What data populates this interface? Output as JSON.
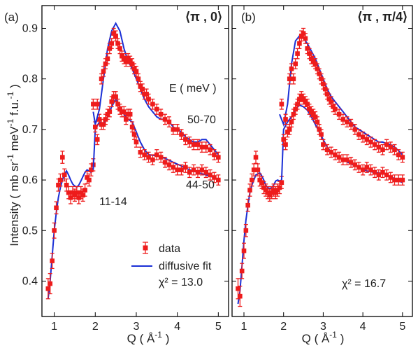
{
  "colors": {
    "data": "#ee1c1c",
    "fit": "#1a2fd6",
    "axis": "#000000"
  },
  "ylabel_parts": [
    "Intensity ( mb sr",
    "-1",
    " meV",
    "-1",
    " f.u.",
    "-1",
    " )"
  ],
  "xlabel_parts": [
    "Q ( Å",
    "-1",
    " )"
  ],
  "legend": {
    "data_label": "data",
    "fit_label": "diffusive fit"
  },
  "annotations": {
    "energy_header": "E ( meV )",
    "range_high": "50-70",
    "range_mid": "44-50",
    "range_low": "11-14"
  },
  "chart_data": [
    {
      "type": "scatter",
      "panel_label": "(a)",
      "q_label": "⟨π , 0⟩",
      "chi2_label": "χ² = 13.0",
      "xlim": [
        0.7,
        5.25
      ],
      "ylim": [
        0.33,
        0.945
      ],
      "xticks": [
        1,
        2,
        3,
        4,
        5
      ],
      "yticks": [
        0.4,
        0.5,
        0.6,
        0.7,
        0.8,
        0.9
      ],
      "series": [
        {
          "name": "11-14",
          "x": [
            0.85,
            0.9,
            0.95,
            1.0,
            1.05,
            1.1,
            1.15,
            1.2,
            1.25,
            1.3,
            1.35,
            1.4,
            1.45,
            1.5,
            1.55,
            1.6,
            1.65,
            1.7,
            1.75,
            1.8,
            1.85,
            1.9,
            1.95
          ],
          "y": [
            0.385,
            0.395,
            0.44,
            0.5,
            0.545,
            0.59,
            0.6,
            0.645,
            0.61,
            0.59,
            0.575,
            0.565,
            0.575,
            0.57,
            0.575,
            0.565,
            0.575,
            0.57,
            0.58,
            0.605,
            0.6,
            0.62,
            0.63
          ],
          "err": [
            0.02,
            0.02,
            0.015,
            0.015,
            0.012,
            0.012,
            0.012,
            0.012,
            0.012,
            0.012,
            0.012,
            0.012,
            0.012,
            0.012,
            0.012,
            0.012,
            0.012,
            0.012,
            0.012,
            0.012,
            0.012,
            0.012,
            0.012
          ],
          "fit_x": [
            0.85,
            0.9,
            0.95,
            1.0,
            1.05,
            1.1,
            1.15,
            1.2,
            1.25,
            1.3,
            1.35,
            1.4,
            1.45,
            1.5,
            1.55,
            1.6,
            1.65,
            1.7,
            1.75,
            1.8,
            1.85,
            1.9,
            1.95
          ],
          "fit_y": [
            0.365,
            0.4,
            0.45,
            0.5,
            0.535,
            0.565,
            0.585,
            0.6,
            0.612,
            0.618,
            0.61,
            0.6,
            0.592,
            0.588,
            0.586,
            0.59,
            0.598,
            0.607,
            0.615,
            0.62,
            0.618,
            0.615,
            0.62
          ]
        },
        {
          "name": "44-50",
          "x": [
            2.0,
            2.05,
            2.1,
            2.15,
            2.2,
            2.25,
            2.3,
            2.35,
            2.4,
            2.45,
            2.5,
            2.55,
            2.6,
            2.65,
            2.7,
            2.75,
            2.8,
            2.85,
            2.9,
            2.95,
            3.0,
            3.1,
            3.2,
            3.3,
            3.4,
            3.5,
            3.6,
            3.7,
            3.8,
            3.9,
            4.0,
            4.1,
            4.2,
            4.3,
            4.4,
            4.5,
            4.6,
            4.7,
            4.8,
            4.9,
            5.0
          ],
          "y": [
            0.705,
            0.68,
            0.72,
            0.71,
            0.71,
            0.72,
            0.73,
            0.735,
            0.755,
            0.765,
            0.765,
            0.75,
            0.74,
            0.735,
            0.735,
            0.72,
            0.73,
            0.73,
            0.705,
            0.69,
            0.675,
            0.655,
            0.65,
            0.645,
            0.64,
            0.65,
            0.645,
            0.635,
            0.63,
            0.625,
            0.62,
            0.62,
            0.625,
            0.615,
            0.62,
            0.615,
            0.62,
            0.615,
            0.61,
            0.605,
            0.6
          ],
          "err": [
            0.01,
            0.01,
            0.01,
            0.01,
            0.01,
            0.01,
            0.01,
            0.01,
            0.01,
            0.01,
            0.01,
            0.01,
            0.01,
            0.01,
            0.01,
            0.01,
            0.01,
            0.01,
            0.01,
            0.01,
            0.01,
            0.01,
            0.01,
            0.01,
            0.01,
            0.01,
            0.01,
            0.01,
            0.01,
            0.01,
            0.01,
            0.01,
            0.01,
            0.01,
            0.01,
            0.01,
            0.01,
            0.01,
            0.01,
            0.01,
            0.01
          ],
          "fit_x": [
            1.95,
            2.0,
            2.1,
            2.2,
            2.3,
            2.4,
            2.5,
            2.6,
            2.7,
            2.8,
            2.9,
            3.0,
            3.1,
            3.2,
            3.3,
            3.5,
            3.7,
            3.9,
            4.1,
            4.3,
            4.5,
            4.7,
            4.9,
            5.0
          ],
          "fit_y": [
            0.62,
            0.7,
            0.715,
            0.71,
            0.725,
            0.745,
            0.76,
            0.745,
            0.73,
            0.72,
            0.715,
            0.695,
            0.675,
            0.66,
            0.65,
            0.648,
            0.643,
            0.635,
            0.628,
            0.62,
            0.615,
            0.61,
            0.605,
            0.6
          ]
        },
        {
          "name": "50-70",
          "x": [
            1.95,
            2.05,
            2.15,
            2.2,
            2.25,
            2.3,
            2.35,
            2.4,
            2.45,
            2.5,
            2.55,
            2.6,
            2.65,
            2.7,
            2.75,
            2.8,
            2.85,
            2.9,
            2.95,
            3.0,
            3.05,
            3.1,
            3.15,
            3.2,
            3.25,
            3.3,
            3.4,
            3.5,
            3.6,
            3.7,
            3.8,
            3.9,
            4.0,
            4.1,
            4.2,
            4.3,
            4.4,
            4.5,
            4.6,
            4.7,
            4.8,
            4.9,
            5.0
          ],
          "y": [
            0.75,
            0.75,
            0.8,
            0.815,
            0.83,
            0.84,
            0.86,
            0.87,
            0.89,
            0.885,
            0.87,
            0.86,
            0.845,
            0.84,
            0.835,
            0.84,
            0.835,
            0.83,
            0.82,
            0.815,
            0.8,
            0.785,
            0.78,
            0.77,
            0.77,
            0.76,
            0.75,
            0.74,
            0.73,
            0.72,
            0.715,
            0.7,
            0.7,
            0.69,
            0.68,
            0.675,
            0.67,
            0.67,
            0.665,
            0.665,
            0.66,
            0.65,
            0.645
          ],
          "err": [
            0.01,
            0.01,
            0.01,
            0.01,
            0.01,
            0.01,
            0.01,
            0.01,
            0.01,
            0.01,
            0.01,
            0.01,
            0.01,
            0.01,
            0.01,
            0.01,
            0.01,
            0.01,
            0.01,
            0.01,
            0.01,
            0.01,
            0.01,
            0.01,
            0.01,
            0.01,
            0.01,
            0.01,
            0.01,
            0.01,
            0.01,
            0.01,
            0.01,
            0.01,
            0.01,
            0.01,
            0.01,
            0.01,
            0.01,
            0.01,
            0.01,
            0.01,
            0.01
          ],
          "fit_x": [
            1.95,
            2.0,
            2.1,
            2.2,
            2.3,
            2.4,
            2.5,
            2.6,
            2.7,
            2.8,
            2.9,
            3.0,
            3.1,
            3.2,
            3.3,
            3.4,
            3.5,
            3.6,
            3.7,
            3.8,
            3.9,
            4.0,
            4.1,
            4.2,
            4.3,
            4.4,
            4.5,
            4.6,
            4.7,
            4.8,
            4.9,
            5.0
          ],
          "fit_y": [
            0.735,
            0.71,
            0.74,
            0.8,
            0.86,
            0.895,
            0.91,
            0.895,
            0.86,
            0.835,
            0.82,
            0.8,
            0.78,
            0.76,
            0.745,
            0.735,
            0.725,
            0.72,
            0.72,
            0.715,
            0.705,
            0.7,
            0.695,
            0.685,
            0.68,
            0.675,
            0.675,
            0.68,
            0.68,
            0.67,
            0.66,
            0.65
          ]
        }
      ]
    },
    {
      "type": "scatter",
      "panel_label": "(b)",
      "q_label": "⟨π , π/4⟩",
      "chi2_label": "χ² = 16.7",
      "xlim": [
        0.7,
        5.25
      ],
      "ylim": [
        0.33,
        0.945
      ],
      "xticks": [
        1,
        2,
        3,
        4,
        5
      ],
      "yticks": [
        0.4,
        0.5,
        0.6,
        0.7,
        0.8,
        0.9
      ],
      "series": [
        {
          "name": "11-14",
          "x": [
            0.85,
            0.9,
            0.95,
            1.0,
            1.05,
            1.1,
            1.15,
            1.2,
            1.25,
            1.3,
            1.35,
            1.4,
            1.45,
            1.5,
            1.55,
            1.6,
            1.65,
            1.7,
            1.75,
            1.8,
            1.85,
            1.9,
            1.95
          ],
          "y": [
            0.385,
            0.37,
            0.42,
            0.46,
            0.5,
            0.55,
            0.58,
            0.6,
            0.62,
            0.645,
            0.62,
            0.6,
            0.595,
            0.585,
            0.58,
            0.575,
            0.57,
            0.575,
            0.58,
            0.575,
            0.58,
            0.585,
            0.595
          ],
          "err": [
            0.02,
            0.02,
            0.015,
            0.015,
            0.012,
            0.012,
            0.012,
            0.012,
            0.012,
            0.012,
            0.012,
            0.012,
            0.012,
            0.012,
            0.012,
            0.012,
            0.012,
            0.012,
            0.012,
            0.012,
            0.012,
            0.012,
            0.012
          ],
          "fit_x": [
            0.85,
            0.9,
            0.95,
            1.0,
            1.05,
            1.1,
            1.15,
            1.2,
            1.25,
            1.3,
            1.35,
            1.4,
            1.45,
            1.5,
            1.55,
            1.6,
            1.65,
            1.7,
            1.75,
            1.8,
            1.85,
            1.9,
            1.95
          ],
          "fit_y": [
            0.355,
            0.38,
            0.43,
            0.48,
            0.52,
            0.55,
            0.575,
            0.59,
            0.6,
            0.61,
            0.612,
            0.614,
            0.608,
            0.6,
            0.59,
            0.585,
            0.583,
            0.585,
            0.59,
            0.598,
            0.6,
            0.598,
            0.6
          ]
        },
        {
          "name": "44-50",
          "x": [
            2.0,
            2.05,
            2.1,
            2.15,
            2.2,
            2.25,
            2.3,
            2.35,
            2.4,
            2.45,
            2.5,
            2.55,
            2.6,
            2.65,
            2.7,
            2.75,
            2.8,
            2.85,
            2.9,
            2.95,
            3.0,
            3.1,
            3.2,
            3.3,
            3.4,
            3.5,
            3.6,
            3.7,
            3.8,
            3.9,
            4.0,
            4.1,
            4.2,
            4.3,
            4.4,
            4.5,
            4.6,
            4.7,
            4.8,
            4.9,
            5.0
          ],
          "y": [
            0.68,
            0.67,
            0.695,
            0.7,
            0.715,
            0.73,
            0.74,
            0.75,
            0.76,
            0.765,
            0.76,
            0.755,
            0.75,
            0.74,
            0.735,
            0.73,
            0.725,
            0.715,
            0.7,
            0.69,
            0.67,
            0.66,
            0.655,
            0.65,
            0.645,
            0.64,
            0.64,
            0.635,
            0.63,
            0.625,
            0.62,
            0.625,
            0.62,
            0.615,
            0.61,
            0.615,
            0.61,
            0.605,
            0.6,
            0.6,
            0.6
          ],
          "err": [
            0.01,
            0.01,
            0.01,
            0.01,
            0.01,
            0.01,
            0.01,
            0.01,
            0.01,
            0.01,
            0.01,
            0.01,
            0.01,
            0.01,
            0.01,
            0.01,
            0.01,
            0.01,
            0.01,
            0.01,
            0.01,
            0.01,
            0.01,
            0.01,
            0.01,
            0.01,
            0.01,
            0.01,
            0.01,
            0.01,
            0.01,
            0.01,
            0.01,
            0.01,
            0.01,
            0.01,
            0.01,
            0.01,
            0.01,
            0.01,
            0.01
          ],
          "fit_x": [
            1.95,
            2.0,
            2.1,
            2.2,
            2.3,
            2.4,
            2.5,
            2.6,
            2.7,
            2.8,
            2.9,
            3.0,
            3.1,
            3.2,
            3.3,
            3.5,
            3.7,
            3.9,
            4.1,
            4.3,
            4.5,
            4.7,
            4.9,
            5.0
          ],
          "fit_y": [
            0.6,
            0.7,
            0.715,
            0.725,
            0.74,
            0.748,
            0.745,
            0.738,
            0.725,
            0.71,
            0.695,
            0.68,
            0.665,
            0.655,
            0.648,
            0.64,
            0.632,
            0.625,
            0.618,
            0.615,
            0.613,
            0.607,
            0.598,
            0.595
          ]
        },
        {
          "name": "50-70",
          "x": [
            1.95,
            2.05,
            2.15,
            2.2,
            2.25,
            2.3,
            2.35,
            2.4,
            2.45,
            2.5,
            2.55,
            2.6,
            2.65,
            2.7,
            2.75,
            2.8,
            2.85,
            2.9,
            2.95,
            3.0,
            3.05,
            3.1,
            3.15,
            3.2,
            3.25,
            3.3,
            3.4,
            3.5,
            3.6,
            3.7,
            3.8,
            3.9,
            4.0,
            4.1,
            4.2,
            4.3,
            4.4,
            4.5,
            4.6,
            4.7,
            4.8,
            4.9,
            5.0
          ],
          "y": [
            0.75,
            0.72,
            0.8,
            0.82,
            0.8,
            0.83,
            0.85,
            0.87,
            0.885,
            0.89,
            0.88,
            0.86,
            0.85,
            0.84,
            0.835,
            0.83,
            0.82,
            0.81,
            0.8,
            0.79,
            0.78,
            0.77,
            0.76,
            0.755,
            0.745,
            0.74,
            0.73,
            0.72,
            0.715,
            0.71,
            0.7,
            0.69,
            0.685,
            0.68,
            0.675,
            0.67,
            0.665,
            0.66,
            0.67,
            0.665,
            0.66,
            0.65,
            0.645
          ],
          "err": [
            0.01,
            0.01,
            0.01,
            0.01,
            0.01,
            0.01,
            0.01,
            0.01,
            0.01,
            0.01,
            0.01,
            0.01,
            0.01,
            0.01,
            0.01,
            0.01,
            0.01,
            0.01,
            0.01,
            0.01,
            0.01,
            0.01,
            0.01,
            0.01,
            0.01,
            0.01,
            0.01,
            0.01,
            0.01,
            0.01,
            0.01,
            0.01,
            0.01,
            0.01,
            0.01,
            0.01,
            0.01,
            0.01,
            0.01,
            0.01,
            0.01,
            0.01,
            0.01
          ],
          "fit_x": [
            1.9,
            2.0,
            2.1,
            2.2,
            2.3,
            2.4,
            2.5,
            2.6,
            2.7,
            2.8,
            2.9,
            3.0,
            3.1,
            3.2,
            3.3,
            3.4,
            3.5,
            3.6,
            3.7,
            3.8,
            3.9,
            4.0,
            4.1,
            4.2,
            4.3,
            4.4,
            4.5,
            4.6,
            4.7,
            4.8,
            4.9,
            5.0
          ],
          "fit_y": [
            0.73,
            0.71,
            0.75,
            0.83,
            0.875,
            0.885,
            0.88,
            0.87,
            0.855,
            0.84,
            0.82,
            0.8,
            0.78,
            0.765,
            0.755,
            0.745,
            0.735,
            0.725,
            0.715,
            0.705,
            0.7,
            0.695,
            0.69,
            0.685,
            0.68,
            0.675,
            0.675,
            0.672,
            0.67,
            0.665,
            0.658,
            0.65
          ]
        }
      ]
    }
  ]
}
